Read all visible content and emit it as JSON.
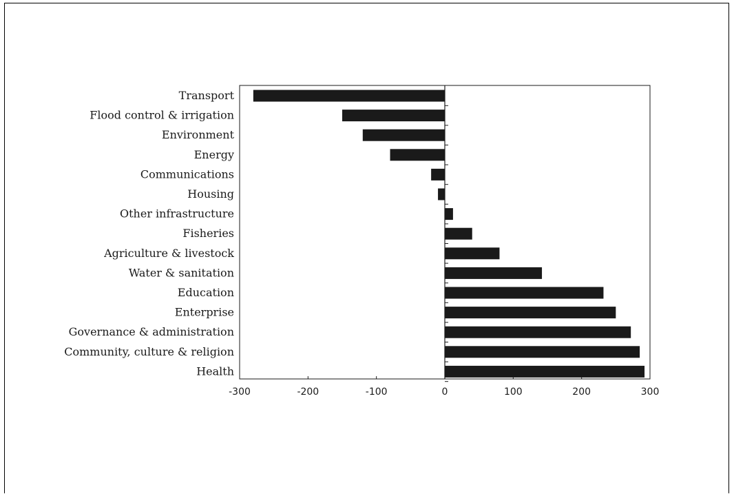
{
  "chart_data": {
    "type": "bar",
    "orientation": "horizontal",
    "title": "",
    "xlabel": "",
    "ylabel": "",
    "categories": [
      "Transport",
      "Flood control & irrigation",
      "Environment",
      "Energy",
      "Communications",
      "Housing",
      "Other infrastructure",
      "Fisheries",
      "Agriculture & livestock",
      "Water & sanitation",
      "Education",
      "Enterprise",
      "Governance & administration",
      "Community, culture & religion",
      "Health"
    ],
    "values": [
      -280,
      -150,
      -120,
      -80,
      -20,
      -10,
      12,
      40,
      80,
      142,
      232,
      250,
      272,
      285,
      292
    ],
    "xlim": [
      -300,
      300
    ],
    "xticks": [
      -300,
      -200,
      -100,
      0,
      100,
      200,
      300
    ],
    "xtick_labels": [
      "-300",
      "-200",
      "-100",
      "0",
      "100",
      "200",
      "300"
    ],
    "bar_color": "#1a1a1a",
    "grid": false,
    "legend": "none"
  }
}
